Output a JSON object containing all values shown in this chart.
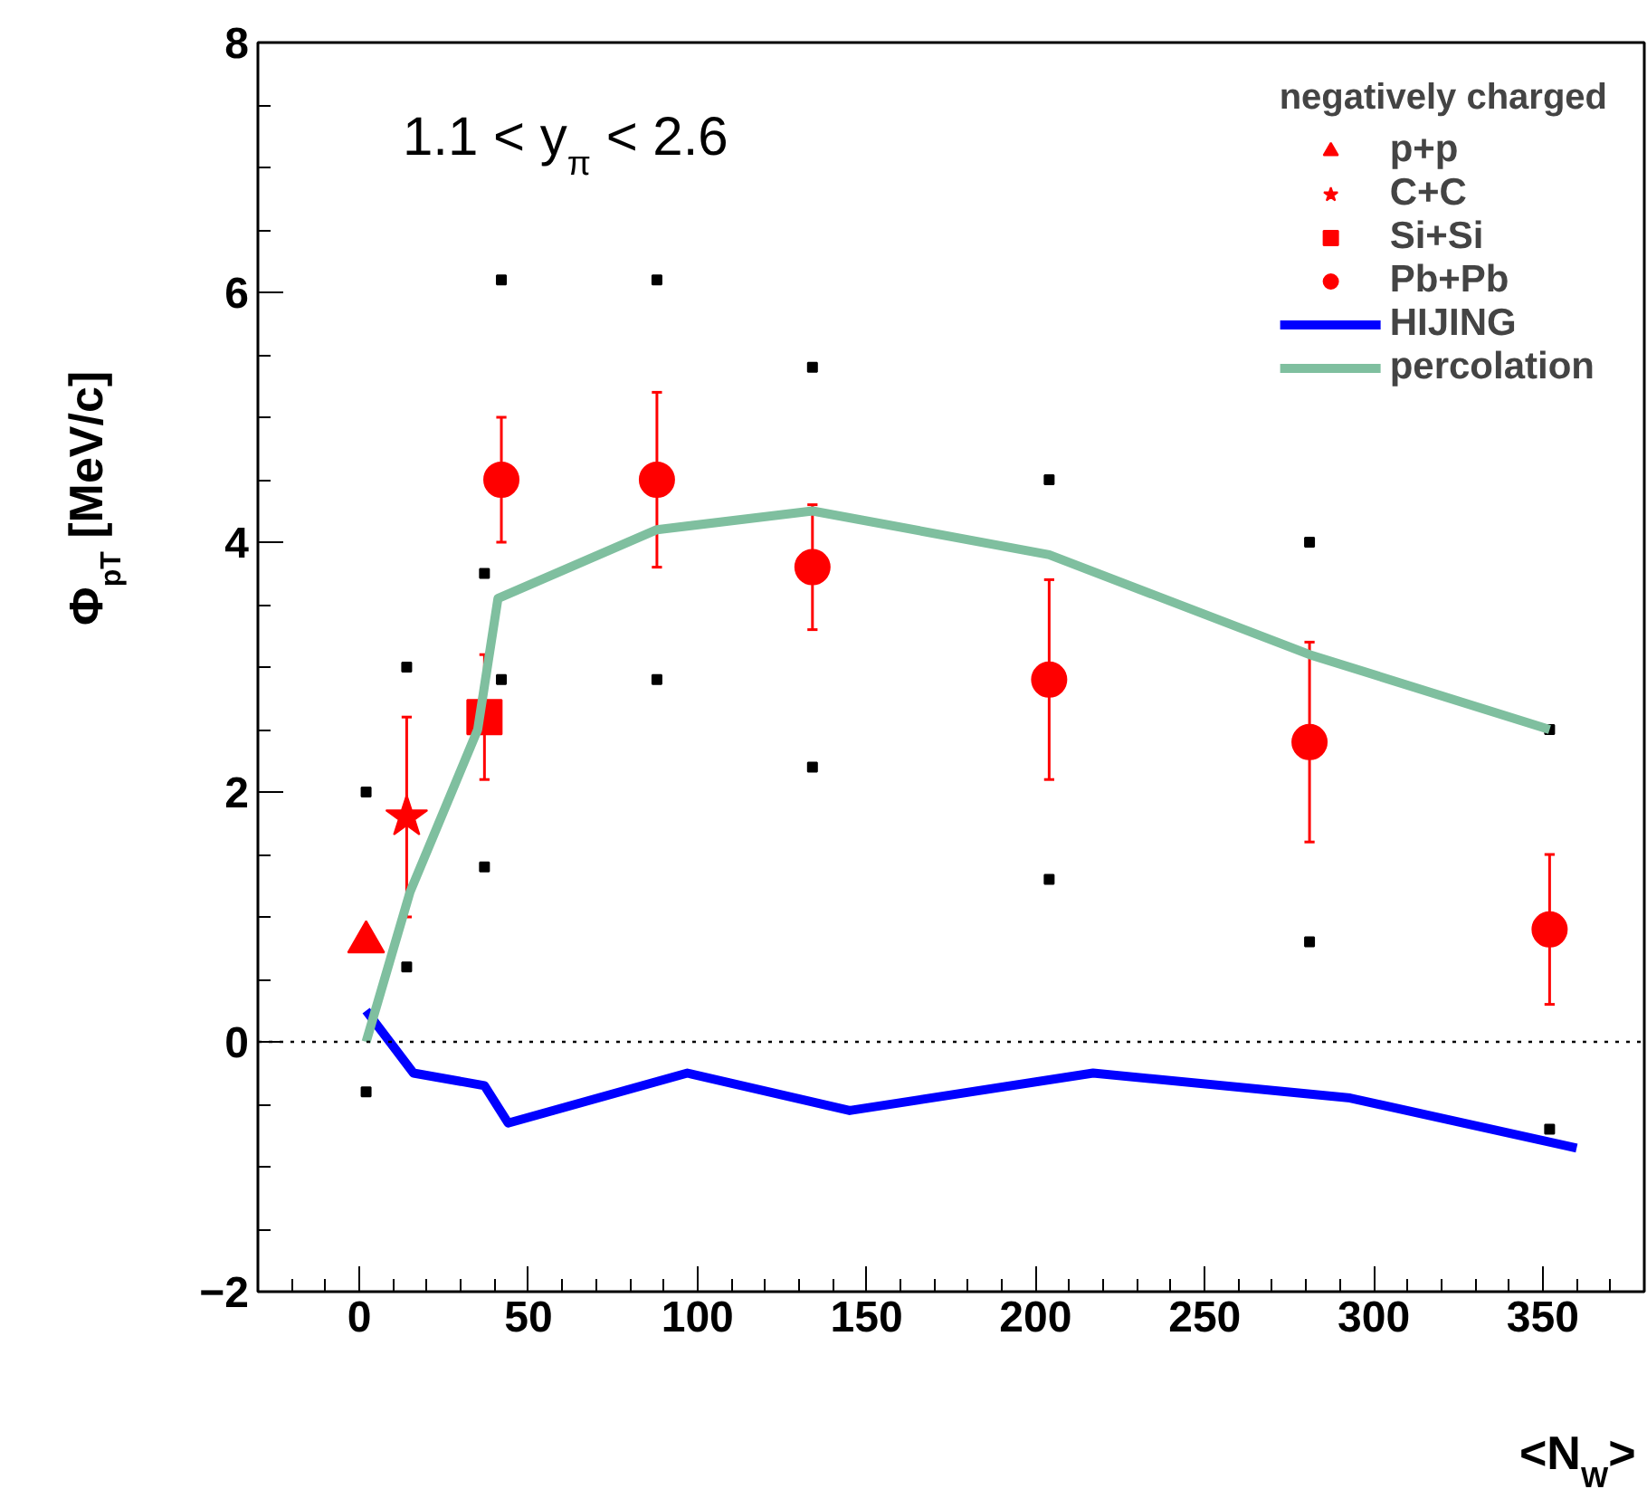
{
  "chart_data": {
    "type": "scatter",
    "xlabel": "<N$_{W}$>",
    "ylabel": "Φ$_{pT}$ [MeV/c]",
    "legend_title": "negatively charged",
    "annotations": [
      "1.1 < y$_{π}$ < 2.6"
    ],
    "xlim": [
      -30,
      380
    ],
    "ylim": [
      -2,
      8
    ],
    "xticks": [
      0,
      50,
      100,
      150,
      200,
      250,
      300,
      350,
      {
        "value": -20,
        "label": null
      },
      {
        "value": -10,
        "label": null
      },
      {
        "value": 10,
        "label": null
      },
      {
        "value": 20,
        "label": null
      },
      {
        "value": 30,
        "label": null
      },
      {
        "value": 40,
        "label": null
      },
      {
        "value": 60,
        "label": null
      },
      {
        "value": 70,
        "label": null
      },
      {
        "value": 80,
        "label": null
      },
      {
        "value": 90,
        "label": null
      },
      {
        "value": 110,
        "label": null
      },
      {
        "value": 120,
        "label": null
      },
      {
        "value": 130,
        "label": null
      },
      {
        "value": 140,
        "label": null
      },
      {
        "value": 160,
        "label": null
      },
      {
        "value": 170,
        "label": null
      },
      {
        "value": 180,
        "label": null
      },
      {
        "value": 190,
        "label": null
      },
      {
        "value": 210,
        "label": null
      },
      {
        "value": 220,
        "label": null
      },
      {
        "value": 230,
        "label": null
      },
      {
        "value": 240,
        "label": null
      },
      {
        "value": 260,
        "label": null
      },
      {
        "value": 270,
        "label": null
      },
      {
        "value": 280,
        "label": null
      },
      {
        "value": 290,
        "label": null
      },
      {
        "value": 310,
        "label": null
      },
      {
        "value": 320,
        "label": null
      },
      {
        "value": 330,
        "label": null
      },
      {
        "value": 340,
        "label": null
      },
      {
        "value": 360,
        "label": null
      },
      {
        "value": 370,
        "label": null
      }
    ],
    "yticks": [
      -2,
      0,
      2,
      4,
      6,
      8,
      {
        "value": -1.5,
        "label": null
      },
      {
        "value": -1,
        "label": null
      },
      {
        "value": -0.5,
        "label": null
      },
      {
        "value": 0.5,
        "label": null
      },
      {
        "value": 1,
        "label": null
      },
      {
        "value": 1.5,
        "label": null
      },
      {
        "value": 2.5,
        "label": null
      },
      {
        "value": 3,
        "label": null
      },
      {
        "value": 3.5,
        "label": null
      },
      {
        "value": 4.5,
        "label": null
      },
      {
        "value": 5,
        "label": null
      },
      {
        "value": 5.5,
        "label": null
      },
      {
        "value": 6.5,
        "label": null
      },
      {
        "value": 7,
        "label": null
      },
      {
        "value": 7.5,
        "label": null
      }
    ],
    "grid": false,
    "legend": "top right",
    "ref_lines": [
      {
        "axis": "y",
        "value": 0,
        "label": null,
        "color": "#000000",
        "line_style": "dotted"
      }
    ],
    "series": [
      {
        "name": "p+p",
        "marker": "triangle",
        "color": "#ff0000",
        "x": [
          2
        ],
        "values": [
          0.8
        ],
        "errors": [
          null
        ]
      },
      {
        "name": "C+C",
        "marker": "star",
        "color": "#ff0000",
        "x": [
          14
        ],
        "values": [
          1.8
        ],
        "errors": [
          [
            1.0,
            2.6
          ]
        ]
      },
      {
        "name": "Si+Si",
        "marker": "square",
        "color": "#ff0000",
        "x": [
          37
        ],
        "values": [
          2.6
        ],
        "errors": [
          [
            2.1,
            3.1
          ]
        ]
      },
      {
        "name": "Pb+Pb",
        "marker": "circle",
        "color": "#ff0000",
        "x": [
          42,
          88,
          134,
          204,
          281,
          352
        ],
        "values": [
          4.5,
          4.5,
          3.8,
          2.9,
          2.4,
          0.9
        ],
        "errors": [
          [
            4.0,
            5.0
          ],
          [
            3.8,
            5.2
          ],
          [
            3.3,
            4.3
          ],
          [
            2.1,
            3.7
          ],
          [
            1.6,
            3.2
          ],
          [
            0.3,
            1.5
          ]
        ]
      },
      {
        "marker": "square",
        "color": "#000000",
        "x": [
          2,
          2,
          14,
          14,
          37,
          37,
          42,
          42,
          88,
          88,
          134,
          134,
          204,
          204,
          281,
          281,
          352,
          352
        ],
        "values": [
          -0.4,
          2.0,
          0.6,
          3.0,
          1.4,
          3.75,
          2.9,
          6.1,
          2.9,
          6.1,
          2.2,
          5.4,
          1.3,
          4.5,
          0.8,
          4.0,
          -0.7,
          2.5
        ]
      },
      {
        "name": "HIJING",
        "type": "line",
        "color": "#0000ff",
        "x": [
          2,
          16,
          37,
          44,
          97,
          145,
          217,
          293,
          360
        ],
        "values": [
          0.25,
          -0.25,
          -0.35,
          -0.65,
          -0.25,
          -0.55,
          -0.25,
          -0.45,
          -0.85
        ]
      },
      {
        "name": "percolation",
        "type": "line",
        "color": "#7fbf9f",
        "x": [
          2,
          15,
          35,
          41,
          88,
          134,
          204,
          281,
          352
        ],
        "values": [
          0,
          1.2,
          2.5,
          3.55,
          4.1,
          4.25,
          3.9,
          3.1,
          2.5
        ]
      }
    ]
  }
}
